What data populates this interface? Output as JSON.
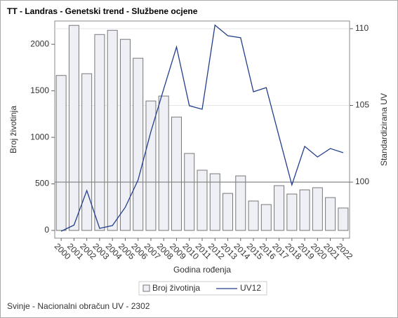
{
  "chart_data": {
    "type": "bar_line",
    "title": "TT - Landras - Genetski trend - Službene ocjene",
    "xlabel": "Godina rođenja",
    "ylabel": "Broj životinja",
    "y2label": "Standardizirana UV",
    "footnote": "Svinje - Nacionalni obračun UV - 2302",
    "categories": [
      "2000",
      "2001",
      "2002",
      "2003",
      "2004",
      "2005",
      "2006",
      "2007",
      "2008",
      "2009",
      "2010",
      "2011",
      "2012",
      "2013",
      "2014",
      "2015",
      "2016",
      "2017",
      "2018",
      "2019",
      "2020",
      "2021",
      "2022"
    ],
    "series": [
      {
        "name": "Broj životinja",
        "type": "bar",
        "color": "#eef0f5",
        "values": [
          1665,
          2203,
          1684,
          2105,
          2150,
          2053,
          1850,
          1391,
          1444,
          1218,
          827,
          647,
          609,
          398,
          586,
          316,
          278,
          481,
          391,
          436,
          459,
          353,
          241
        ]
      },
      {
        "name": "UV12",
        "type": "line",
        "axis": "y2",
        "color": "#233f8c",
        "values": [
          96.8,
          97.2,
          99.45,
          96.99,
          97.17,
          98.36,
          100.14,
          103.29,
          106.07,
          108.81,
          104.98,
          104.75,
          110.23,
          109.54,
          109.41,
          105.89,
          106.16,
          102.97,
          99.82,
          102.33,
          101.64,
          102.19,
          101.92
        ]
      }
    ],
    "ylim": [
      -83,
      2250
    ],
    "yticks": [
      0,
      500,
      1000,
      1500,
      2000
    ],
    "y2lim": [
      96.35,
      110.5
    ],
    "y2ticks": [
      100,
      105,
      110
    ],
    "y2_reference": 100,
    "grid": "y2",
    "legend": "bottom"
  }
}
